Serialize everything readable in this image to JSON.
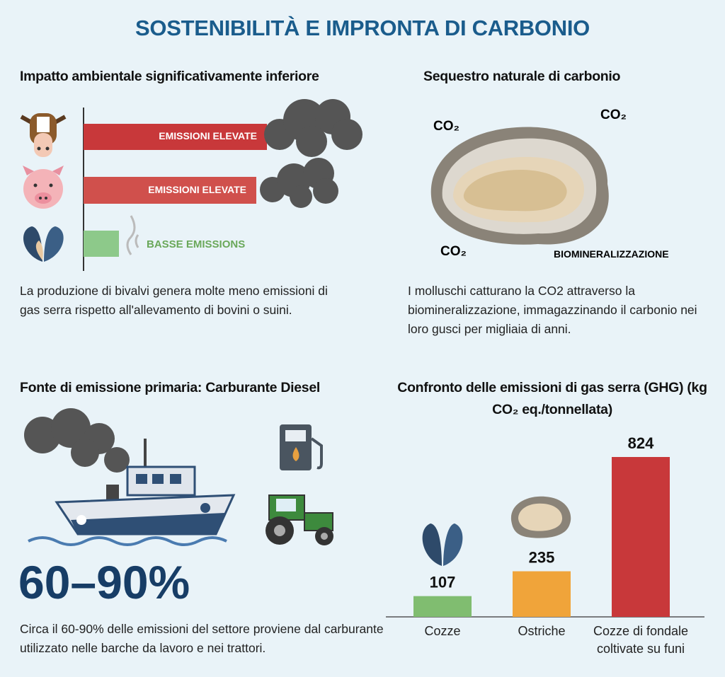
{
  "title": "SOSTENIBILITÀ E IMPRONTA DI CARBONIO",
  "impact": {
    "heading": "Impatto ambientale significativamente inferiore",
    "labels": [
      "EMISSIONI ELEVATE",
      "EMISSIONI ELEVATE",
      "BASSE EMISSIONS"
    ],
    "text": "La produzione di bivalvi genera molte meno emissioni di gas serra rispetto all'allevamento di bovini o suini."
  },
  "sequestration": {
    "heading": "Sequestro naturale di carbonio",
    "labels": [
      "CO₂",
      "CO₂",
      "CO₂",
      "BIOMINERALIZZAZIONE"
    ],
    "text": "I molluschi catturano la CO2 attraverso la biomineralizzazione, immagazzinando il carbonio nei loro gusci per migliaia di anni."
  },
  "diesel": {
    "heading": "Fonte di emissione primaria: Carburante Diesel",
    "figure": "60–90%",
    "text": "Circa il 60-90% delle emissioni del settore proviene dal carburante utilizzato nelle barche da lavoro e nei trattori."
  },
  "chart_data": {
    "type": "bar",
    "title": "Confronto delle emissioni di gas serra (GHG) (kg CO₂ eq./tonnellata)",
    "categories": [
      "Cozze",
      "Ostriche",
      "Cozze di fondale coltivate su funi"
    ],
    "values": [
      107,
      235,
      824
    ],
    "colors": [
      "#80bd70",
      "#f0a43a",
      "#c8383a"
    ]
  }
}
